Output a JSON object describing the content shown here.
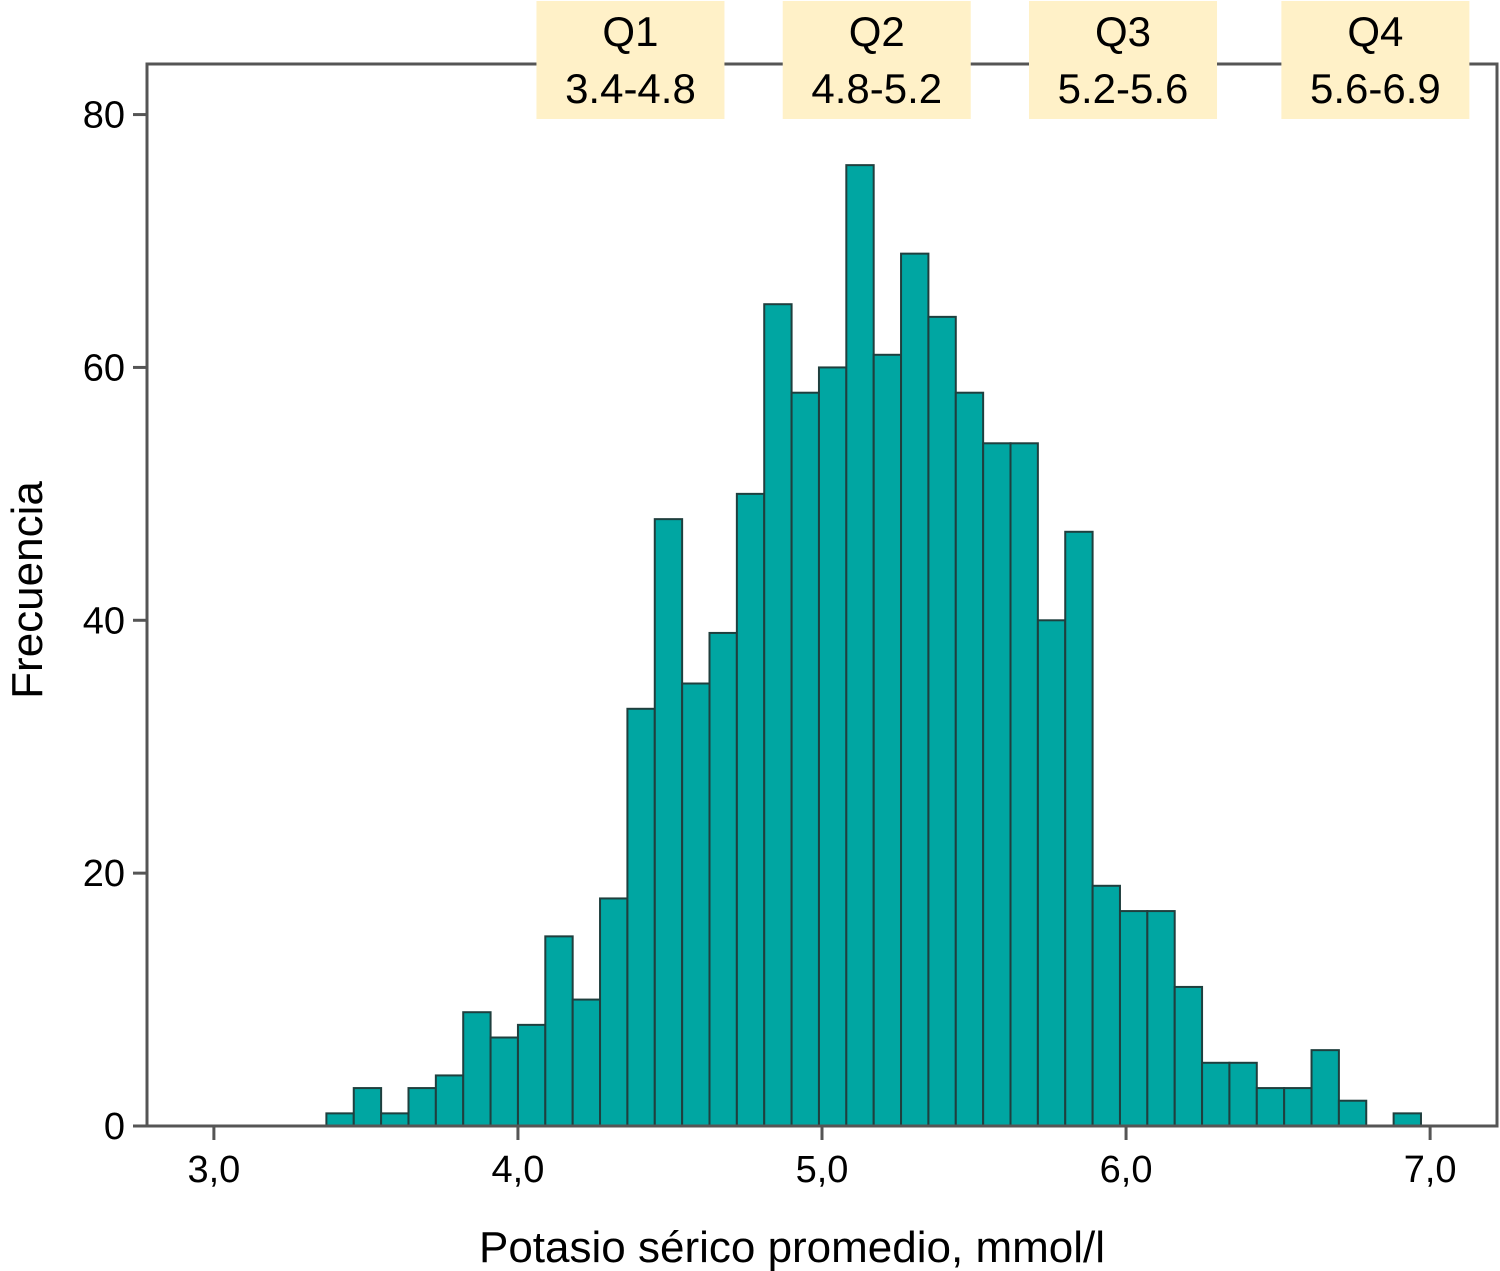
{
  "colors": {
    "bar_fill": "#00A6A2",
    "bar_stroke": "#1f3f3e",
    "frame": "#555555",
    "quartile_box": "#FFF1C8"
  },
  "chart_data": {
    "type": "bar",
    "title": "",
    "xlabel": "Potasio sérico promedio, mmol/l",
    "ylabel": "Frecuencia",
    "xlim": [
      2.78,
      7.22
    ],
    "ylim": [
      0,
      84
    ],
    "x_ticks": [
      {
        "value": 3.0,
        "label": "3,0"
      },
      {
        "value": 4.0,
        "label": "4,0"
      },
      {
        "value": 5.0,
        "label": "5,0"
      },
      {
        "value": 6.0,
        "label": "6,0"
      },
      {
        "value": 7.0,
        "label": "7,0"
      }
    ],
    "y_ticks": [
      {
        "value": 0,
        "label": "0"
      },
      {
        "value": 20,
        "label": "20"
      },
      {
        "value": 40,
        "label": "40"
      },
      {
        "value": 60,
        "label": "60"
      },
      {
        "value": 80,
        "label": "80"
      }
    ],
    "bin_width": 0.09,
    "bins": [
      {
        "start": 3.37,
        "count": 1
      },
      {
        "start": 3.46,
        "count": 3
      },
      {
        "start": 3.55,
        "count": 1
      },
      {
        "start": 3.64,
        "count": 3
      },
      {
        "start": 3.73,
        "count": 4
      },
      {
        "start": 3.82,
        "count": 9
      },
      {
        "start": 3.91,
        "count": 7
      },
      {
        "start": 4.0,
        "count": 8
      },
      {
        "start": 4.09,
        "count": 15
      },
      {
        "start": 4.18,
        "count": 10
      },
      {
        "start": 4.27,
        "count": 18
      },
      {
        "start": 4.36,
        "count": 33
      },
      {
        "start": 4.45,
        "count": 48
      },
      {
        "start": 4.54,
        "count": 35
      },
      {
        "start": 4.63,
        "count": 39
      },
      {
        "start": 4.72,
        "count": 50
      },
      {
        "start": 4.81,
        "count": 65
      },
      {
        "start": 4.9,
        "count": 58
      },
      {
        "start": 4.99,
        "count": 60
      },
      {
        "start": 5.08,
        "count": 76
      },
      {
        "start": 5.17,
        "count": 61
      },
      {
        "start": 5.26,
        "count": 69
      },
      {
        "start": 5.35,
        "count": 64
      },
      {
        "start": 5.44,
        "count": 58
      },
      {
        "start": 5.53,
        "count": 54
      },
      {
        "start": 5.62,
        "count": 54
      },
      {
        "start": 5.71,
        "count": 40
      },
      {
        "start": 5.8,
        "count": 47
      },
      {
        "start": 5.89,
        "count": 19
      },
      {
        "start": 5.98,
        "count": 17
      },
      {
        "start": 6.07,
        "count": 17
      },
      {
        "start": 6.16,
        "count": 11
      },
      {
        "start": 6.25,
        "count": 5
      },
      {
        "start": 6.34,
        "count": 5
      },
      {
        "start": 6.43,
        "count": 3
      },
      {
        "start": 6.52,
        "count": 3
      },
      {
        "start": 6.61,
        "count": 6
      },
      {
        "start": 6.7,
        "count": 2
      },
      {
        "start": 6.79,
        "count": 0
      },
      {
        "start": 6.88,
        "count": 1
      }
    ],
    "quartiles": [
      {
        "name": "Q1",
        "range": "3.4-4.8",
        "center": 4.37
      },
      {
        "name": "Q2",
        "range": "4.8-5.2",
        "center": 5.18
      },
      {
        "name": "Q3",
        "range": "5.2-5.6",
        "center": 5.99
      },
      {
        "name": "Q4",
        "range": "5.6-6.9",
        "center": 6.82
      }
    ],
    "grid": false,
    "legend": "none"
  }
}
